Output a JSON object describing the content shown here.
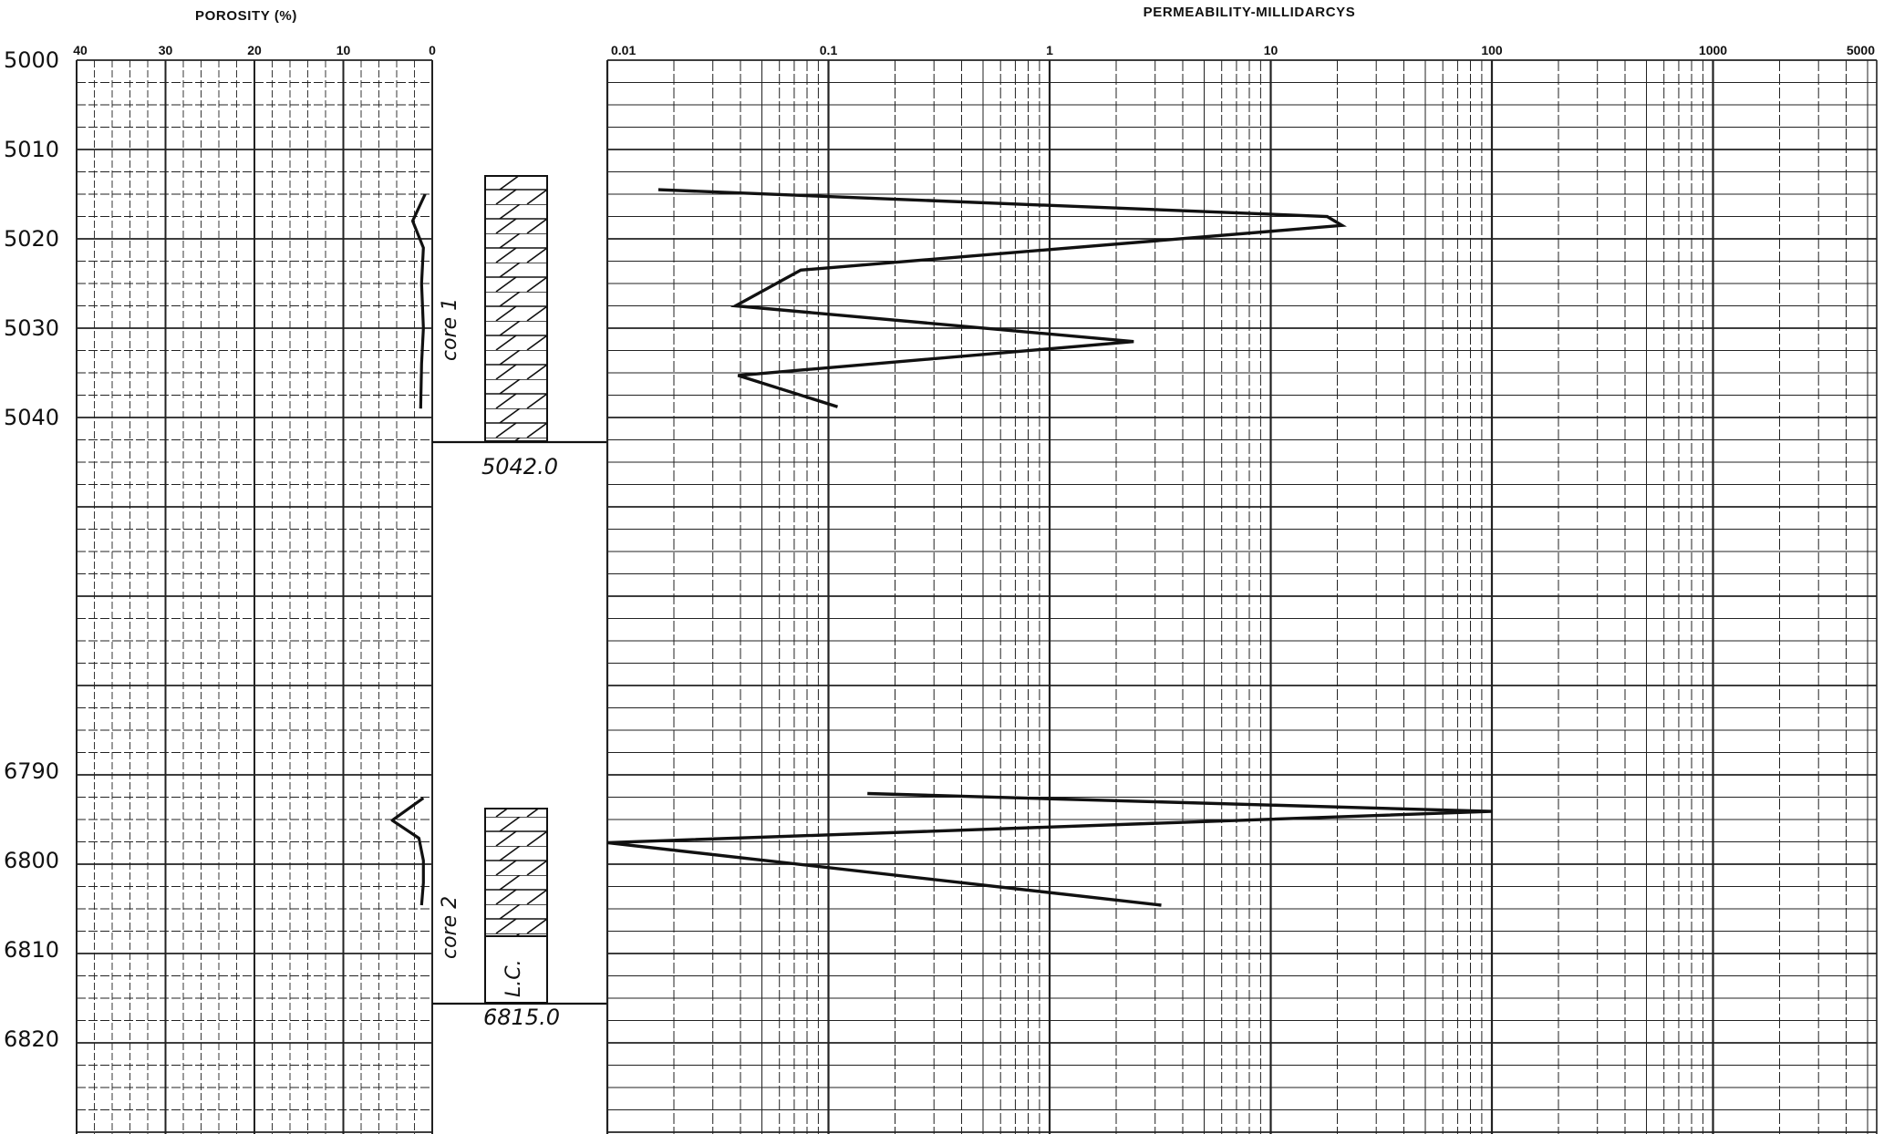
{
  "chart_data": [
    {
      "type": "line",
      "title": "POROSITY (%)",
      "xlim": [
        40,
        0
      ],
      "x_ticks": [
        "40",
        "30",
        "20",
        "10",
        "0"
      ],
      "depth_ticks": [
        "5000",
        "5010",
        "5020",
        "5030",
        "5040",
        "6790",
        "6800",
        "6810",
        "6820"
      ],
      "grid": true,
      "series": [
        {
          "core": 1,
          "points": [
            [
              0.8,
              5015
            ],
            [
              2.2,
              5018
            ],
            [
              1.0,
              5021
            ],
            [
              1.2,
              5025
            ],
            [
              1.0,
              5030
            ],
            [
              1.2,
              5034
            ],
            [
              1.3,
              5039
            ]
          ]
        },
        {
          "core": 2,
          "points": [
            [
              1.0,
              6793
            ],
            [
              4.5,
              6795.5
            ],
            [
              1.5,
              6797.5
            ],
            [
              1.0,
              6800
            ],
            [
              1.0,
              6802.5
            ],
            [
              1.2,
              6805
            ]
          ]
        }
      ]
    },
    {
      "type": "column",
      "cores": [
        {
          "label": "core 1",
          "top": 5012,
          "bottom": 5042.0,
          "bottom_label": "5042.0",
          "lithology": "limestone"
        },
        {
          "label": "core 2",
          "top": 6793,
          "bottom": 6815.0,
          "bottom_label": "6815.0",
          "lithology": "limestone",
          "lost_core_label": "L.C.",
          "lost_core_top": 6808
        }
      ]
    },
    {
      "type": "line",
      "title": "PERMEABILITY-MILLIDARCYS",
      "x_scale": "log",
      "xlim": [
        0.01,
        5000
      ],
      "x_ticks": [
        "0.01",
        "0.1",
        "1",
        "10",
        "100",
        "1000",
        "5000"
      ],
      "grid": true,
      "series": [
        {
          "core": 1,
          "points": [
            [
              0.017,
              5014.5
            ],
            [
              18,
              5017.5
            ],
            [
              21,
              5018.5
            ],
            [
              0.075,
              5023.5
            ],
            [
              0.038,
              5027.5
            ],
            [
              2.4,
              5031.5
            ],
            [
              0.039,
              5035.3
            ],
            [
              0.11,
              5038.8
            ]
          ]
        },
        {
          "core": 2,
          "points": [
            [
              0.15,
              6792.5
            ],
            [
              100,
              6794.5
            ],
            [
              0.01,
              6798
            ],
            [
              3.2,
              6805
            ]
          ]
        }
      ]
    }
  ]
}
